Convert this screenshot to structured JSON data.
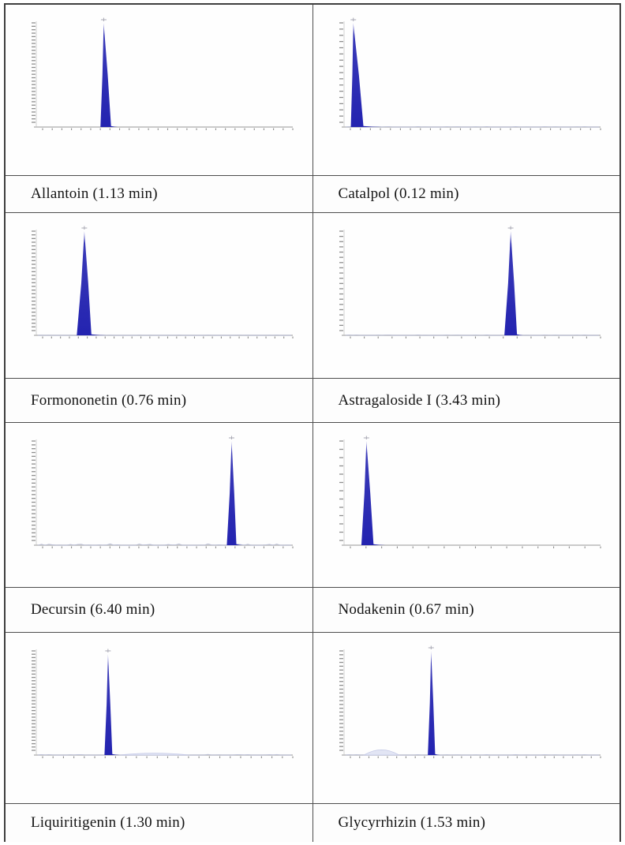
{
  "figure": {
    "description": "Grid of eight MRM chromatograms, one marker compound per panel, caption with retention time under each plot",
    "columns": 2,
    "rows": 4
  },
  "colors": {
    "peak_fill": "#2323b0",
    "peak_tip": "#9a9ade",
    "axis_line": "#b9b9b9",
    "tick_mark": "#8f8f8f",
    "apex_marker": "#a8a8b4",
    "noise_line": "#b9bdd6",
    "bump_fill": "#e2e5f4",
    "bump_stroke": "#c3c8e6",
    "table_border": "#3f3f3f",
    "grid_line": "#4d4d4d",
    "caption_text": "#141414"
  },
  "chart_data": [
    {
      "type": "area",
      "title": "Allantoin",
      "caption": "Allantoin (1.13 min)",
      "retention_time_min": 1.13,
      "peak": {
        "base_left_frac": 0.236,
        "apex_frac": 0.249,
        "base_right_frac": 0.278,
        "tail_end_frac": 0.305,
        "height_frac": 1.0
      },
      "y_tick_count": 30,
      "x_tick_count": 27,
      "noise_amp": 0,
      "bump": null
    },
    {
      "type": "area",
      "title": "Catalpol",
      "caption": "Catalpol (0.12 min)",
      "retention_time_min": 0.12,
      "peak": {
        "base_left_frac": 0.008,
        "apex_frac": 0.018,
        "base_right_frac": 0.058,
        "tail_end_frac": 0.13,
        "height_frac": 1.0
      },
      "y_tick_count": 17,
      "x_tick_count": 26,
      "noise_amp": 0.3,
      "bump": null
    },
    {
      "type": "area",
      "title": "Formononetin",
      "caption": "Formononetin (0.76 min)",
      "retention_time_min": 0.76,
      "peak": {
        "base_left_frac": 0.142,
        "apex_frac": 0.172,
        "base_right_frac": 0.2,
        "tail_end_frac": 0.26,
        "height_frac": 1.0
      },
      "y_tick_count": 28,
      "x_tick_count": 29,
      "noise_amp": 0.2,
      "bump": null
    },
    {
      "type": "area",
      "title": "Astragaloside I",
      "caption": "Astragaloside I (3.43 min)",
      "retention_time_min": 3.43,
      "peak": {
        "base_left_frac": 0.618,
        "apex_frac": 0.643,
        "base_right_frac": 0.668,
        "tail_end_frac": 0.692,
        "height_frac": 1.0
      },
      "y_tick_count": 20,
      "x_tick_count": 19,
      "noise_amp": 0.3,
      "bump": null
    },
    {
      "type": "area",
      "title": "Decursin",
      "caption": "Decursin (6.40 min)",
      "retention_time_min": 6.4,
      "peak": {
        "base_left_frac": 0.738,
        "apex_frac": 0.757,
        "base_right_frac": 0.776,
        "tail_end_frac": 0.8,
        "height_frac": 1.0
      },
      "y_tick_count": 27,
      "x_tick_count": 27,
      "noise_amp": 1.0,
      "bump": null
    },
    {
      "type": "area",
      "title": "Nodakenin",
      "caption": "Nodakenin (0.67 min)",
      "retention_time_min": 0.67,
      "peak": {
        "base_left_frac": 0.05,
        "apex_frac": 0.07,
        "base_right_frac": 0.098,
        "tail_end_frac": 0.145,
        "height_frac": 1.0
      },
      "y_tick_count": 13,
      "x_tick_count": 17,
      "noise_amp": 0,
      "bump": null
    },
    {
      "type": "area",
      "title": "Liquiritigenin",
      "caption": "Liquiritigenin (1.30 min)",
      "retention_time_min": 1.3,
      "peak": {
        "base_left_frac": 0.252,
        "apex_frac": 0.266,
        "base_right_frac": 0.283,
        "tail_end_frac": 0.31,
        "height_frac": 0.97
      },
      "y_tick_count": 31,
      "x_tick_count": 25,
      "noise_amp": 0.5,
      "bump": {
        "center_frac": 0.45,
        "width_frac": 0.28,
        "height_frac": 0.018
      }
    },
    {
      "type": "area",
      "title": "Glycyrrhizin",
      "caption": "Glycyrrhizin (1.53 min)",
      "retention_time_min": 1.53,
      "peak": {
        "base_left_frac": 0.314,
        "apex_frac": 0.327,
        "base_right_frac": 0.343,
        "tail_end_frac": 0.362,
        "height_frac": 1.0
      },
      "y_tick_count": 27,
      "x_tick_count": 28,
      "noise_amp": 0.3,
      "bump": {
        "center_frac": 0.13,
        "width_frac": 0.14,
        "height_frac": 0.05
      }
    }
  ]
}
